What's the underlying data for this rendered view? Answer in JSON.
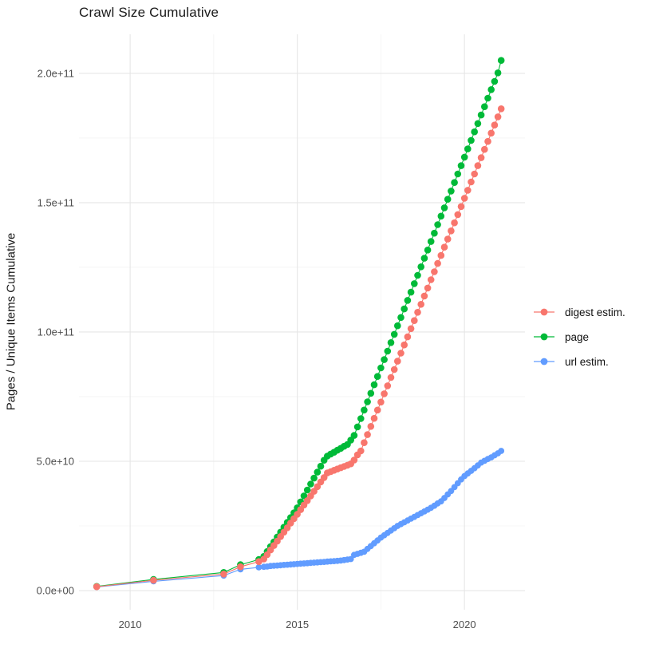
{
  "chart_data": {
    "type": "scatter",
    "title": "Crawl Size Cumulative",
    "xlabel": "",
    "ylabel": "Pages / Unique Items Cumulative",
    "legend_position": "right",
    "grid": true,
    "values_unit": "billions (1e9) of pages / unique items",
    "x_axis": {
      "major_ticks": [
        2010,
        2015,
        2020
      ],
      "minor_ticks": [
        2012.5,
        2017.5
      ],
      "labels": [
        "2010",
        "2015",
        "2020"
      ],
      "xlim": [
        2008.47,
        2021.81
      ]
    },
    "y_axis": {
      "major_ticks_billions": [
        0,
        50,
        100,
        150,
        200
      ],
      "minor_ticks_billions": [
        25,
        75,
        125,
        175
      ],
      "labels": [
        "0.0e+00",
        "5.0e+10",
        "1.0e+11",
        "1.5e+11",
        "2.0e+11"
      ],
      "ylim_billions": [
        -7.4,
        215.1
      ]
    },
    "draw_order": [
      "url estim.",
      "page",
      "digest estim."
    ],
    "series": [
      {
        "name": "digest estim.",
        "color": "#F8766D",
        "marker_radius": 4.3,
        "points_year_billions": [
          [
            2009.0,
            1.5
          ],
          [
            2010.7,
            4.0
          ],
          [
            2012.8,
            6.4
          ],
          [
            2013.3,
            9.2
          ],
          [
            2013.85,
            11.2
          ],
          [
            2014.0,
            12.2
          ],
          [
            2014.1,
            13.9
          ],
          [
            2014.2,
            15.7
          ],
          [
            2014.3,
            17.4
          ],
          [
            2014.4,
            19.1
          ],
          [
            2014.5,
            20.9
          ],
          [
            2014.6,
            22.6
          ],
          [
            2014.7,
            24.3
          ],
          [
            2014.8,
            26.1
          ],
          [
            2014.9,
            27.8
          ],
          [
            2015.0,
            29.5
          ],
          [
            2015.1,
            31.3
          ],
          [
            2015.2,
            33.1
          ],
          [
            2015.3,
            34.8
          ],
          [
            2015.4,
            36.6
          ],
          [
            2015.5,
            38.4
          ],
          [
            2015.6,
            40.2
          ],
          [
            2015.7,
            42.0
          ],
          [
            2015.8,
            43.7
          ],
          [
            2015.9,
            45.5
          ],
          [
            2016.0,
            46.0
          ],
          [
            2016.1,
            46.5
          ],
          [
            2016.2,
            47.0
          ],
          [
            2016.3,
            47.5
          ],
          [
            2016.4,
            48.0
          ],
          [
            2016.5,
            48.5
          ],
          [
            2016.6,
            49.0
          ],
          [
            2016.7,
            50.5
          ],
          [
            2016.8,
            52.5
          ],
          [
            2016.9,
            54.0
          ],
          [
            2017.0,
            57.2
          ],
          [
            2017.1,
            60.3
          ],
          [
            2017.2,
            63.5
          ],
          [
            2017.3,
            66.6
          ],
          [
            2017.4,
            69.8
          ],
          [
            2017.5,
            72.9
          ],
          [
            2017.6,
            76.1
          ],
          [
            2017.7,
            79.2
          ],
          [
            2017.8,
            82.4
          ],
          [
            2017.9,
            85.5
          ],
          [
            2018.0,
            88.7
          ],
          [
            2018.1,
            91.8
          ],
          [
            2018.2,
            95.0
          ],
          [
            2018.3,
            98.1
          ],
          [
            2018.4,
            101.3
          ],
          [
            2018.5,
            104.4
          ],
          [
            2018.6,
            107.6
          ],
          [
            2018.7,
            110.7
          ],
          [
            2018.8,
            113.9
          ],
          [
            2018.9,
            117.0
          ],
          [
            2019.0,
            120.2
          ],
          [
            2019.1,
            123.3
          ],
          [
            2019.2,
            126.5
          ],
          [
            2019.3,
            129.6
          ],
          [
            2019.4,
            132.8
          ],
          [
            2019.5,
            135.9
          ],
          [
            2019.6,
            139.1
          ],
          [
            2019.7,
            142.2
          ],
          [
            2019.8,
            145.4
          ],
          [
            2019.9,
            148.5
          ],
          [
            2020.0,
            151.7
          ],
          [
            2020.1,
            154.8
          ],
          [
            2020.2,
            158.0
          ],
          [
            2020.3,
            161.1
          ],
          [
            2020.4,
            164.3
          ],
          [
            2020.5,
            167.4
          ],
          [
            2020.6,
            170.6
          ],
          [
            2020.7,
            173.7
          ],
          [
            2020.8,
            176.9
          ],
          [
            2020.9,
            180.0
          ],
          [
            2021.0,
            183.2
          ],
          [
            2021.1,
            186.3
          ]
        ]
      },
      {
        "name": "page",
        "color": "#00BA38",
        "marker_radius": 4.3,
        "points_year_billions": [
          [
            2009.0,
            1.6
          ],
          [
            2010.7,
            4.3
          ],
          [
            2012.8,
            7.0
          ],
          [
            2013.3,
            10.0
          ],
          [
            2013.85,
            12.0
          ],
          [
            2014.0,
            13.2
          ],
          [
            2014.1,
            15.1
          ],
          [
            2014.2,
            17.0
          ],
          [
            2014.3,
            18.8
          ],
          [
            2014.4,
            20.7
          ],
          [
            2014.5,
            22.6
          ],
          [
            2014.6,
            24.5
          ],
          [
            2014.7,
            26.4
          ],
          [
            2014.8,
            28.2
          ],
          [
            2014.9,
            30.1
          ],
          [
            2015.0,
            32.0
          ],
          [
            2015.1,
            34.3
          ],
          [
            2015.2,
            36.6
          ],
          [
            2015.3,
            38.9
          ],
          [
            2015.4,
            41.2
          ],
          [
            2015.5,
            43.5
          ],
          [
            2015.6,
            45.8
          ],
          [
            2015.7,
            48.1
          ],
          [
            2015.8,
            50.4
          ],
          [
            2015.9,
            52.0
          ],
          [
            2016.0,
            52.8
          ],
          [
            2016.1,
            53.5
          ],
          [
            2016.2,
            54.3
          ],
          [
            2016.3,
            55.0
          ],
          [
            2016.4,
            55.8
          ],
          [
            2016.5,
            56.5
          ],
          [
            2016.6,
            58.2
          ],
          [
            2016.7,
            60.0
          ],
          [
            2016.8,
            63.3
          ],
          [
            2016.9,
            66.5
          ],
          [
            2017.0,
            69.8
          ],
          [
            2017.1,
            73.0
          ],
          [
            2017.2,
            76.3
          ],
          [
            2017.3,
            79.6
          ],
          [
            2017.4,
            82.8
          ],
          [
            2017.5,
            86.1
          ],
          [
            2017.6,
            89.3
          ],
          [
            2017.7,
            92.6
          ],
          [
            2017.8,
            95.9
          ],
          [
            2017.9,
            99.1
          ],
          [
            2018.0,
            102.4
          ],
          [
            2018.1,
            105.6
          ],
          [
            2018.2,
            108.9
          ],
          [
            2018.3,
            112.2
          ],
          [
            2018.4,
            115.4
          ],
          [
            2018.5,
            118.7
          ],
          [
            2018.6,
            121.9
          ],
          [
            2018.7,
            125.2
          ],
          [
            2018.8,
            128.5
          ],
          [
            2018.9,
            131.7
          ],
          [
            2019.0,
            135.0
          ],
          [
            2019.1,
            138.2
          ],
          [
            2019.2,
            141.5
          ],
          [
            2019.3,
            144.8
          ],
          [
            2019.4,
            148.0
          ],
          [
            2019.5,
            151.3
          ],
          [
            2019.6,
            154.5
          ],
          [
            2019.7,
            157.8
          ],
          [
            2019.8,
            161.1
          ],
          [
            2019.9,
            164.3
          ],
          [
            2020.0,
            167.6
          ],
          [
            2020.1,
            170.8
          ],
          [
            2020.2,
            174.1
          ],
          [
            2020.3,
            177.4
          ],
          [
            2020.4,
            180.6
          ],
          [
            2020.5,
            183.9
          ],
          [
            2020.6,
            187.1
          ],
          [
            2020.7,
            190.4
          ],
          [
            2020.8,
            193.7
          ],
          [
            2020.9,
            196.9
          ],
          [
            2021.0,
            200.2
          ],
          [
            2021.1,
            205.0
          ]
        ]
      },
      {
        "name": "url estim.",
        "color": "#619CFF",
        "marker_radius": 3.9,
        "points_year_billions": [
          [
            2009.0,
            1.4
          ],
          [
            2010.7,
            3.6
          ],
          [
            2012.8,
            5.8
          ],
          [
            2013.3,
            8.2
          ],
          [
            2013.85,
            9.0
          ],
          [
            2014.0,
            9.2
          ],
          [
            2014.1,
            9.3
          ],
          [
            2014.2,
            9.5
          ],
          [
            2014.3,
            9.6
          ],
          [
            2014.4,
            9.7
          ],
          [
            2014.5,
            9.8
          ],
          [
            2014.6,
            9.9
          ],
          [
            2014.7,
            10.0
          ],
          [
            2014.8,
            10.1
          ],
          [
            2014.9,
            10.2
          ],
          [
            2015.0,
            10.3
          ],
          [
            2015.1,
            10.4
          ],
          [
            2015.2,
            10.5
          ],
          [
            2015.3,
            10.6
          ],
          [
            2015.4,
            10.7
          ],
          [
            2015.5,
            10.8
          ],
          [
            2015.6,
            10.9
          ],
          [
            2015.7,
            11.0
          ],
          [
            2015.8,
            11.1
          ],
          [
            2015.9,
            11.2
          ],
          [
            2016.0,
            11.3
          ],
          [
            2016.1,
            11.4
          ],
          [
            2016.2,
            11.5
          ],
          [
            2016.3,
            11.6
          ],
          [
            2016.4,
            11.8
          ],
          [
            2016.5,
            12.0
          ],
          [
            2016.6,
            12.2
          ],
          [
            2016.7,
            13.8
          ],
          [
            2016.8,
            14.2
          ],
          [
            2016.9,
            14.6
          ],
          [
            2017.0,
            15.0
          ],
          [
            2017.1,
            16.1
          ],
          [
            2017.2,
            17.2
          ],
          [
            2017.3,
            18.3
          ],
          [
            2017.4,
            19.4
          ],
          [
            2017.5,
            20.5
          ],
          [
            2017.6,
            21.4
          ],
          [
            2017.7,
            22.3
          ],
          [
            2017.8,
            23.2
          ],
          [
            2017.9,
            24.1
          ],
          [
            2018.0,
            25.0
          ],
          [
            2018.1,
            25.7
          ],
          [
            2018.2,
            26.4
          ],
          [
            2018.3,
            27.1
          ],
          [
            2018.4,
            27.8
          ],
          [
            2018.5,
            28.5
          ],
          [
            2018.6,
            29.2
          ],
          [
            2018.7,
            29.9
          ],
          [
            2018.8,
            30.6
          ],
          [
            2018.9,
            31.3
          ],
          [
            2019.0,
            32.0
          ],
          [
            2019.1,
            32.8
          ],
          [
            2019.2,
            33.7
          ],
          [
            2019.3,
            34.5
          ],
          [
            2019.4,
            35.8
          ],
          [
            2019.5,
            37.2
          ],
          [
            2019.6,
            38.5
          ],
          [
            2019.7,
            40.0
          ],
          [
            2019.8,
            41.5
          ],
          [
            2019.9,
            43.0
          ],
          [
            2020.0,
            44.3
          ],
          [
            2020.1,
            45.3
          ],
          [
            2020.2,
            46.3
          ],
          [
            2020.3,
            47.3
          ],
          [
            2020.4,
            48.4
          ],
          [
            2020.5,
            49.5
          ],
          [
            2020.6,
            50.2
          ],
          [
            2020.7,
            50.9
          ],
          [
            2020.8,
            51.5
          ],
          [
            2020.9,
            52.3
          ],
          [
            2021.0,
            53.1
          ],
          [
            2021.1,
            54.0
          ]
        ]
      }
    ]
  }
}
